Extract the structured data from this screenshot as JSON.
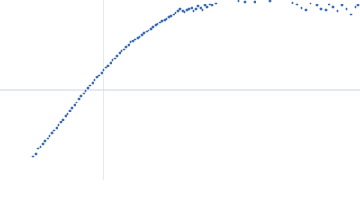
{
  "chart_data": {
    "type": "scatter",
    "x": [
      37,
      40,
      42,
      45,
      48,
      50,
      53,
      55,
      58,
      60,
      63,
      65,
      68,
      70,
      73,
      75,
      78,
      80,
      83,
      85,
      88,
      90,
      93,
      95,
      98,
      100,
      103,
      105,
      108,
      110,
      113,
      115,
      118,
      120,
      123,
      125,
      128,
      130,
      133,
      135,
      138,
      140,
      143,
      145,
      148,
      150,
      153,
      155,
      158,
      160,
      163,
      165,
      168,
      170,
      173,
      175,
      178,
      180,
      183,
      185,
      188,
      190,
      193,
      195,
      198,
      200,
      203,
      205,
      208,
      210,
      213,
      215,
      218,
      220,
      223,
      225,
      228,
      230,
      233,
      236,
      240,
      265,
      272,
      283,
      300,
      325,
      330,
      335,
      340,
      345,
      352,
      357,
      362,
      366,
      370,
      375,
      380,
      385,
      390,
      395,
      398
    ],
    "y": [
      26,
      29,
      35,
      37,
      40,
      43,
      46,
      49,
      52,
      55,
      58,
      61,
      64,
      67,
      71,
      73,
      77,
      80,
      83,
      86,
      90,
      93,
      96,
      99,
      102,
      105,
      108,
      111,
      114,
      116,
      119,
      122,
      125,
      127,
      130,
      133,
      135,
      138,
      141,
      143,
      145,
      148,
      150,
      153,
      154,
      156,
      158,
      159,
      161,
      163,
      165,
      166,
      168,
      170,
      172,
      173,
      175,
      177,
      178,
      179,
      181,
      182,
      184,
      186,
      188,
      190,
      188,
      187,
      189,
      190,
      191,
      188,
      190,
      193,
      191,
      189,
      194,
      192,
      195,
      194,
      196,
      199,
      198,
      198,
      199,
      197,
      195,
      191,
      189,
      196,
      194,
      190,
      189,
      195,
      192,
      188,
      194,
      190,
      184,
      192,
      194
    ],
    "color": "#3a6bb5",
    "xlim": [
      0,
      400
    ],
    "ylim": [
      0,
      200
    ],
    "crosshair": {
      "x": 115,
      "y": 100
    },
    "crosshair_color": "#c9d5e2"
  }
}
